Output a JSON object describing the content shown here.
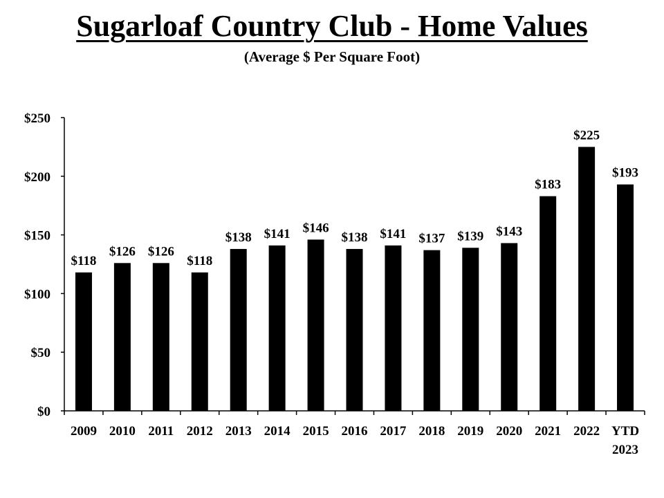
{
  "title": "Sugarloaf Country Club - Home Values",
  "subtitle": "(Average $ Per Square Foot)",
  "chart_data": {
    "type": "bar",
    "categories": [
      "2009",
      "2010",
      "2011",
      "2012",
      "2013",
      "2014",
      "2015",
      "2016",
      "2017",
      "2018",
      "2019",
      "2020",
      "2021",
      "2022",
      "YTD 2023"
    ],
    "values": [
      118,
      126,
      126,
      118,
      138,
      141,
      146,
      138,
      141,
      137,
      139,
      143,
      183,
      225,
      193
    ],
    "data_labels": [
      "$118",
      "$126",
      "$126",
      "$118",
      "$138",
      "$141",
      "$146",
      "$138",
      "$141",
      "$137",
      "$139",
      "$143",
      "$183",
      "$225",
      "$193"
    ],
    "ylim": [
      0,
      250
    ],
    "yticks": [
      0,
      50,
      100,
      150,
      200,
      250
    ],
    "ytick_labels": [
      "$0",
      "$50",
      "$100",
      "$150",
      "$200",
      "$250"
    ],
    "xlabel": "",
    "ylabel": "",
    "grid": false,
    "bar_color": "#000000"
  }
}
